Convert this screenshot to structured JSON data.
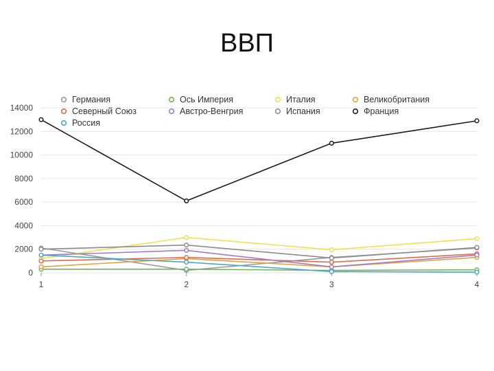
{
  "slide": {
    "title": "ВВП"
  },
  "chart_data": {
    "type": "line",
    "title": "ВВП",
    "x": [
      1,
      2,
      3,
      4
    ],
    "ylim": [
      0,
      14000
    ],
    "yticks": [
      0,
      2000,
      4000,
      6000,
      8000,
      10000,
      12000,
      14000
    ],
    "grid": true,
    "legend_position": "top",
    "series": [
      {
        "name": "Германия",
        "color": "#9a9a9a",
        "values": [
          2100,
          200,
          1300,
          2100
        ]
      },
      {
        "name": "Ось Империя",
        "color": "#72b45a",
        "values": [
          300,
          300,
          200,
          250
        ]
      },
      {
        "name": "Италия",
        "color": "#ece44a",
        "values": [
          1200,
          3000,
          1950,
          2900
        ]
      },
      {
        "name": "Великобритания",
        "color": "#e6a23a",
        "values": [
          500,
          1200,
          500,
          1300
        ]
      },
      {
        "name": "Северный Союз",
        "color": "#e0694a",
        "values": [
          1000,
          1300,
          900,
          1600
        ]
      },
      {
        "name": "Австро-Венгрия",
        "color": "#a07cc6",
        "values": [
          1500,
          1900,
          500,
          1500
        ]
      },
      {
        "name": "Испания",
        "color": "#8c8c8c",
        "values": [
          2000,
          2350,
          1250,
          2150
        ]
      },
      {
        "name": "Франция",
        "color": "#1a1a1a",
        "values": [
          13000,
          6100,
          11000,
          12900
        ]
      },
      {
        "name": "Россия",
        "color": "#4aa8c8",
        "values": [
          1500,
          900,
          100,
          50
        ]
      }
    ]
  }
}
